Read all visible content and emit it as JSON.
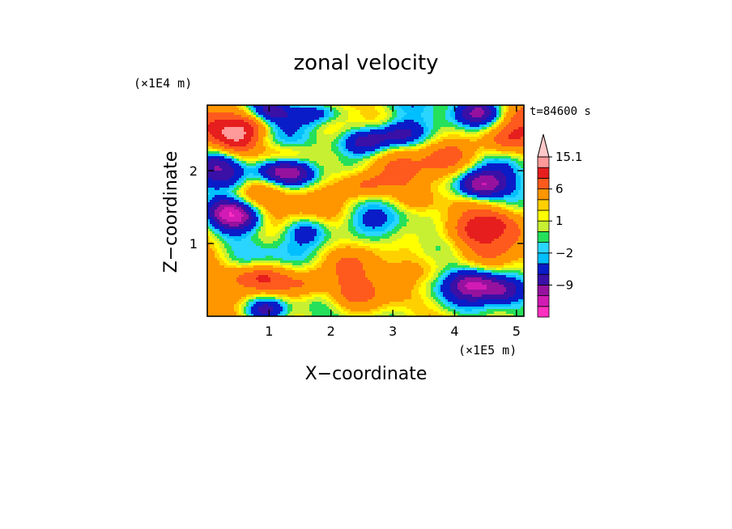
{
  "chart_data": {
    "type": "heatmap",
    "title": "zonal velocity",
    "xlabel": "X−coordinate",
    "ylabel": "Z−coordinate",
    "x_unit": "(×1E5 m)",
    "y_unit": "(×1E4 m)",
    "time_label": "t=84600 s",
    "xlim": [
      0,
      5.12
    ],
    "ylim": [
      0,
      2.9
    ],
    "x_ticks": [
      1,
      2,
      3,
      4,
      5
    ],
    "y_ticks": [
      1,
      2
    ],
    "x_tick_labels": [
      "1",
      "2",
      "3",
      "4",
      "5"
    ],
    "y_tick_labels": [
      "1",
      "2"
    ],
    "colorbar": {
      "levels": [
        -15,
        -12,
        -9,
        -6,
        -3,
        -2,
        -1,
        0,
        1,
        2,
        3,
        6,
        9,
        12,
        15.1
      ],
      "colors": [
        "#ff2fc0",
        "#d21ab4",
        "#96129e",
        "#3a10a6",
        "#0a1cc8",
        "#00bfff",
        "#2ad6ff",
        "#24e05a",
        "#c8f032",
        "#ffff00",
        "#ffd000",
        "#ff9600",
        "#ff5a1e",
        "#e61e1e",
        "#ff9a9a",
        "#ffc8c8"
      ],
      "tick_labels": [
        {
          "value": 15.1,
          "text": "15.1"
        },
        {
          "value": 6,
          "text": "6"
        },
        {
          "value": 1,
          "text": "1"
        },
        {
          "value": -2,
          "text": "−2"
        },
        {
          "value": -9,
          "text": "−9"
        }
      ],
      "extend": "max"
    },
    "field_features": [
      {
        "x": 0.9,
        "z": 0.55,
        "u": 8
      },
      {
        "x": 0.95,
        "z": 0.1,
        "u": -12
      },
      {
        "x": 0.5,
        "z": 0.55,
        "u": 4
      },
      {
        "x": 0.3,
        "z": 1.45,
        "u": -10
      },
      {
        "x": 0.55,
        "z": 1.35,
        "u": -8
      },
      {
        "x": 1.1,
        "z": 2.0,
        "u": -11
      },
      {
        "x": 1.45,
        "z": 1.95,
        "u": -9
      },
      {
        "x": 0.75,
        "z": 2.65,
        "u": 7
      },
      {
        "x": 0.5,
        "z": 2.4,
        "u": 6
      },
      {
        "x": 1.2,
        "z": 2.2,
        "u": 7
      },
      {
        "x": 1.0,
        "z": 2.8,
        "u": -9
      },
      {
        "x": 1.7,
        "z": 2.8,
        "u": -8
      },
      {
        "x": 0.15,
        "z": 2.1,
        "u": -7
      },
      {
        "x": 0.45,
        "z": 1.9,
        "u": -6
      },
      {
        "x": 2.6,
        "z": 2.4,
        "u": -11
      },
      {
        "x": 3.1,
        "z": 2.5,
        "u": -10
      },
      {
        "x": 2.5,
        "z": 1.8,
        "u": 6
      },
      {
        "x": 3.4,
        "z": 1.6,
        "u": 5
      },
      {
        "x": 4.4,
        "z": 1.8,
        "u": -12
      },
      {
        "x": 4.8,
        "z": 2.4,
        "u": 5
      },
      {
        "x": 4.4,
        "z": 2.8,
        "u": -10
      },
      {
        "x": 4.2,
        "z": 1.15,
        "u": 4
      },
      {
        "x": 4.7,
        "z": 1.3,
        "u": 6
      },
      {
        "x": 1.6,
        "z": 1.2,
        "u": -6
      },
      {
        "x": 2.2,
        "z": 1.0,
        "u": -2
      },
      {
        "x": 4.3,
        "z": 0.45,
        "u": -9
      },
      {
        "x": 4.8,
        "z": 0.35,
        "u": -8
      },
      {
        "x": 3.5,
        "z": 0.4,
        "u": -3
      },
      {
        "x": 1.6,
        "z": 0.45,
        "u": 5
      },
      {
        "x": 2.3,
        "z": 0.3,
        "u": 3
      },
      {
        "x": 0.2,
        "z": 0.1,
        "u": -3
      },
      {
        "x": 2.0,
        "z": 2.6,
        "u": 4
      },
      {
        "x": 3.9,
        "z": 2.2,
        "u": 3
      },
      {
        "x": 0.1,
        "z": 2.6,
        "u": 5
      }
    ]
  }
}
